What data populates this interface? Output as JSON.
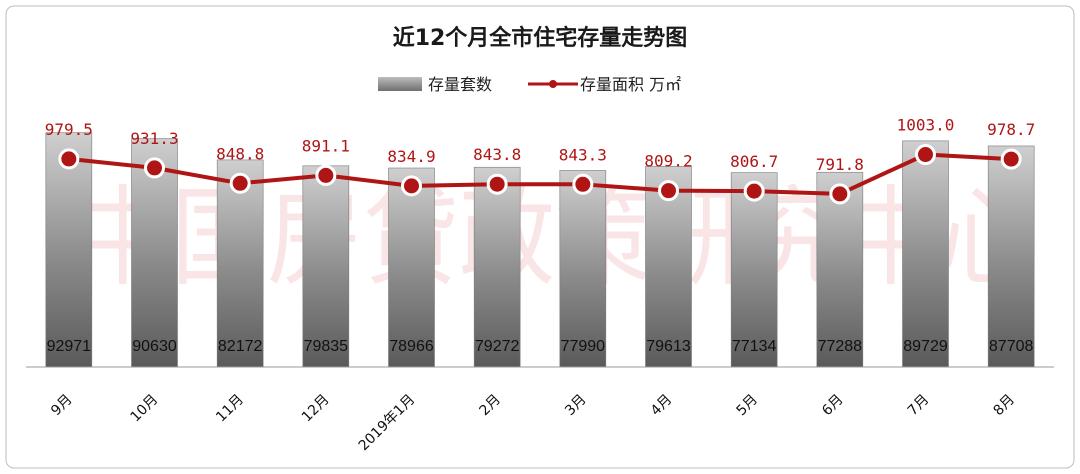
{
  "chart_data": {
    "type": "bar",
    "title": "近12个月全市住宅存量走势图",
    "categories": [
      "9月",
      "10月",
      "11月",
      "12月",
      "2019年1月",
      "2月",
      "3月",
      "4月",
      "5月",
      "6月",
      "7月",
      "8月"
    ],
    "series": [
      {
        "name": "存量套数",
        "type": "bar",
        "color": "#8c8c8c",
        "values": [
          92971,
          90630,
          82172,
          79835,
          78966,
          79272,
          77990,
          79613,
          77134,
          77288,
          89729,
          87708
        ]
      },
      {
        "name": "存量面积 万㎡",
        "type": "line",
        "color": "#b01515",
        "values": [
          979.5,
          931.3,
          848.8,
          891.1,
          834.9,
          843.8,
          843.3,
          809.2,
          806.7,
          791.8,
          1003.0,
          978.7
        ],
        "labels": [
          "979.5",
          "931.3",
          "848.8",
          "891.1",
          "834.9",
          "843.8",
          "843.3",
          "809.2",
          "806.7",
          "791.8",
          "1003.0",
          "978.7"
        ]
      }
    ],
    "legend_position": "top-center",
    "grid": false
  },
  "watermark": "中国房贷政策研究中心"
}
